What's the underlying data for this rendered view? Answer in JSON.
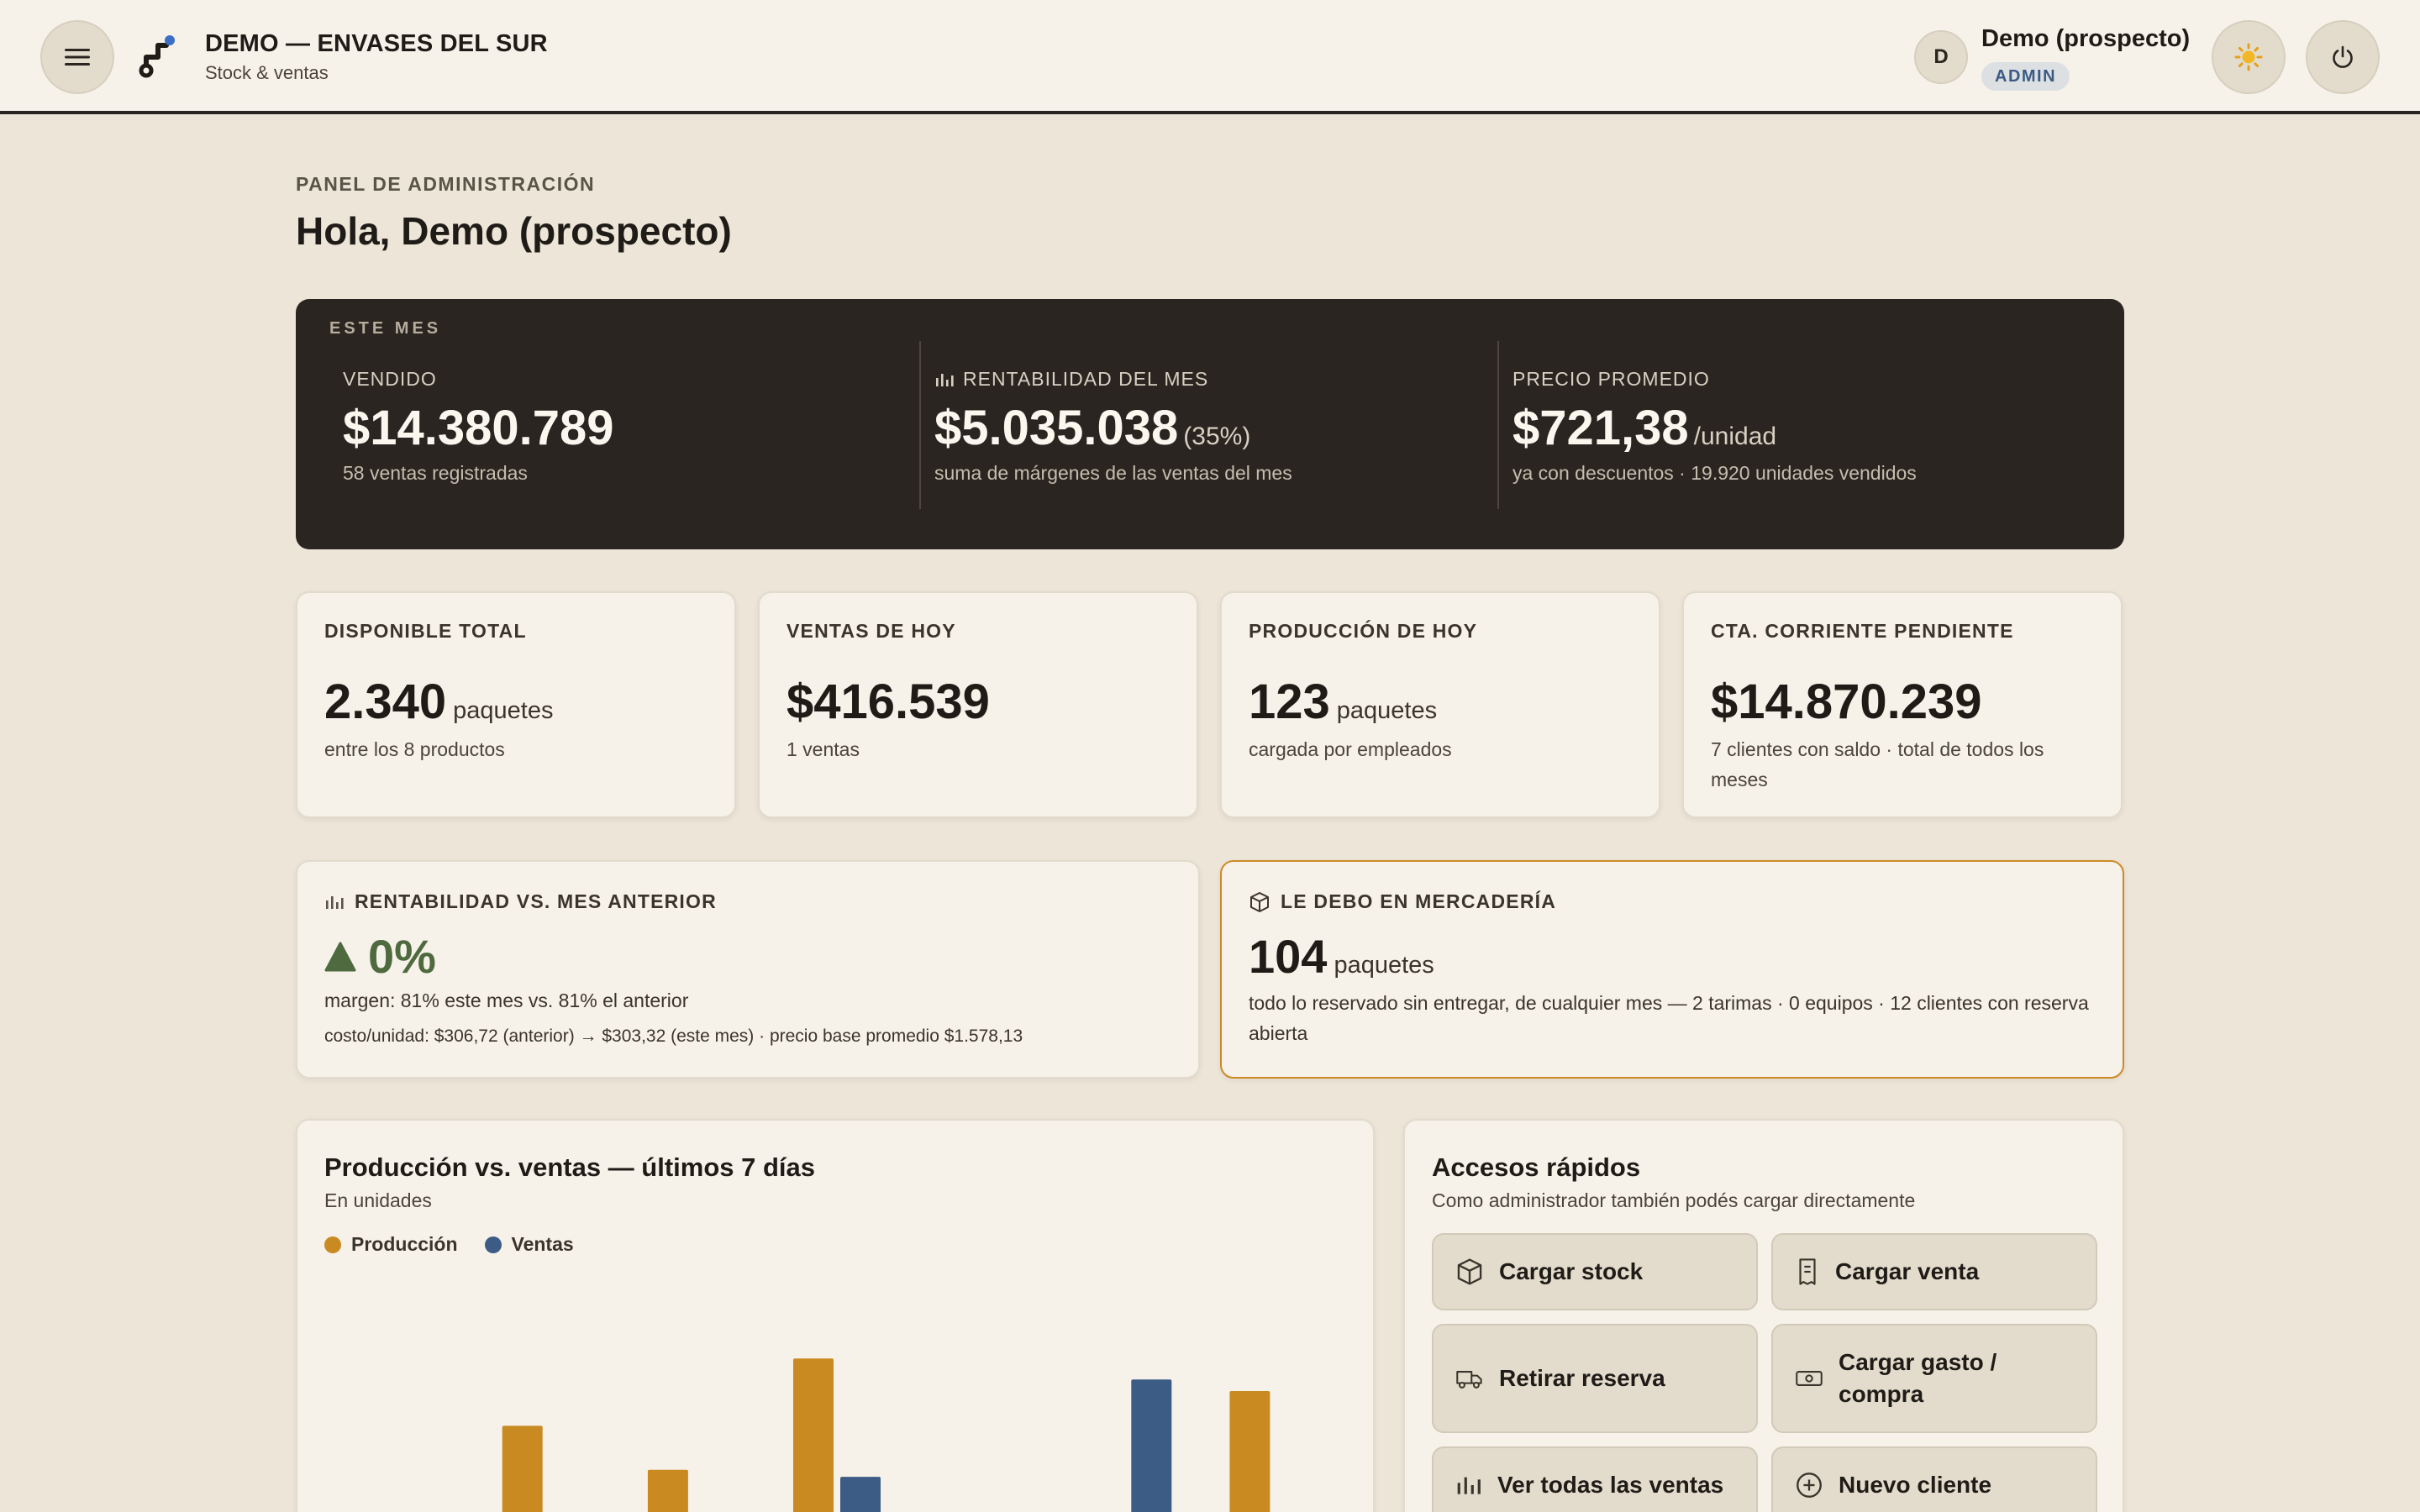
{
  "app": {
    "title": "DEMO — ENVASES DEL SUR",
    "subtitle": "Stock & ventas"
  },
  "user": {
    "initial": "D",
    "name": "Demo (prospecto)",
    "role": "ADMIN"
  },
  "header": {
    "eyebrow": "PANEL DE ADMINISTRACIÓN",
    "greeting": "Hola, Demo (prospecto)"
  },
  "month": {
    "label": "ESTE MES",
    "sold": {
      "label": "VENDIDO",
      "value": "$14.380.789",
      "sub": "58 ventas registradas"
    },
    "profit": {
      "label": "RENTABILIDAD DEL MES",
      "value": "$5.035.038",
      "pct": "(35%)",
      "sub": "suma de márgenes de las ventas del mes"
    },
    "avg_price": {
      "label": "PRECIO PROMEDIO",
      "value": "$721,38",
      "unit": "/unidad",
      "sub": "ya con descuentos · 19.920 unidades vendidos"
    }
  },
  "kpis": [
    {
      "label": "DISPONIBLE TOTAL",
      "value": "2.340",
      "unit": "paquetes",
      "sub": "entre los 8 productos"
    },
    {
      "label": "VENTAS DE HOY",
      "value": "$416.539",
      "unit": "",
      "sub": "1 ventas"
    },
    {
      "label": "PRODUCCIÓN DE HOY",
      "value": "123",
      "unit": "paquetes",
      "sub": "cargada por empleados"
    },
    {
      "label": "CTA. CORRIENTE PENDIENTE",
      "value": "$14.870.239",
      "unit": "",
      "sub": "7 clientes con saldo · total de todos los meses"
    }
  ],
  "rentability": {
    "label": "RENTABILIDAD VS. MES ANTERIOR",
    "value": "0%",
    "sub1": "margen: 81% este mes vs. 81% el anterior",
    "sub2": "costo/unidad: $306,72 (anterior) → $303,32 (este mes) · precio base promedio $1.578,13"
  },
  "debt": {
    "label": "LE DEBO EN MERCADERÍA",
    "value": "104",
    "unit": "paquetes",
    "sub": "todo lo reservado sin entregar, de cualquier mes — 2 tarimas · 0 equipos · 12 clientes con reserva abierta"
  },
  "chart": {
    "title": "Producción vs. ventas — últimos 7 días",
    "subtitle": "En unidades"
  },
  "chart_data": {
    "type": "bar",
    "title": "Producción vs. ventas — últimos 7 días",
    "subtitle": "En unidades",
    "categories": [
      "",
      "",
      "",
      "",
      "",
      "",
      ""
    ],
    "ylim": [
      0,
      100
    ],
    "series": [
      {
        "name": "Producción",
        "color": "#c98a22",
        "values": [
          0,
          64,
          45,
          93,
          0,
          0,
          79
        ]
      },
      {
        "name": "Ventas",
        "color": "#3d5c85",
        "values": [
          0,
          0,
          17,
          42,
          0,
          84,
          0
        ]
      }
    ],
    "grid": false,
    "legend": "top-left"
  },
  "quick": {
    "title": "Accesos rápidos",
    "subtitle": "Como administrador también podés cargar directamente",
    "buttons": [
      {
        "label": "Cargar stock",
        "icon": "box-icon"
      },
      {
        "label": "Cargar venta",
        "icon": "receipt-icon"
      },
      {
        "label": "Retirar reserva",
        "icon": "truck-icon"
      },
      {
        "label": "Cargar gasto / compra",
        "icon": "cash-icon"
      },
      {
        "label": "Ver todas las ventas",
        "icon": "bar-chart-icon"
      },
      {
        "label": "Nuevo cliente",
        "icon": "plus-circle-icon"
      }
    ]
  },
  "colors": {
    "accent_orange": "#c98a22",
    "accent_blue": "#3d5c85",
    "positive_green": "#4f6a3f",
    "dark_card": "#2a2521"
  }
}
